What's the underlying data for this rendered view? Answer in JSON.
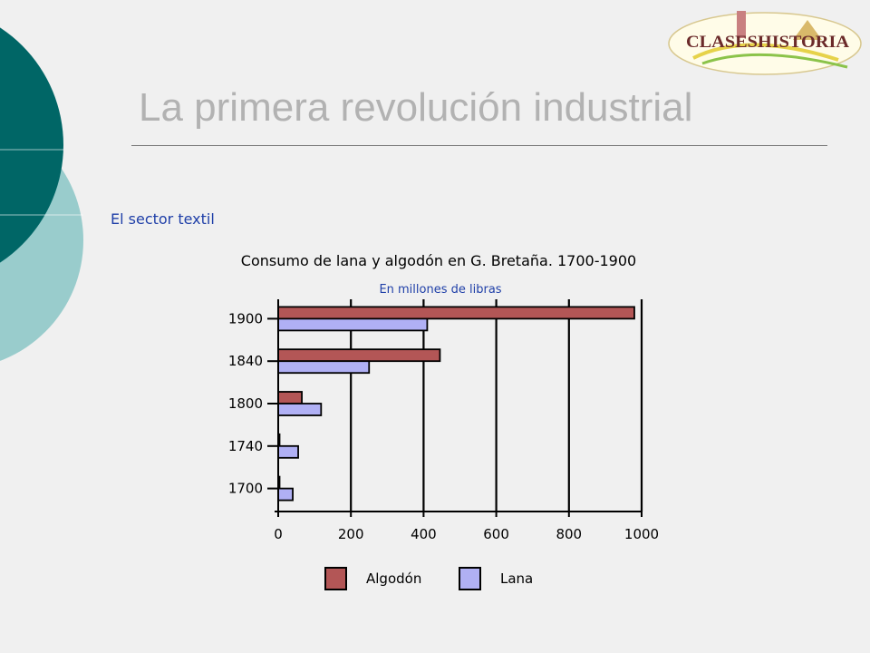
{
  "slide": {
    "title": "La primera revolución industrial",
    "section": "El sector textil"
  },
  "logo": {
    "text": "CLASESHISTORIA",
    "icon": "claseshistoria-logo"
  },
  "colors": {
    "background": "#f0f0f0",
    "teal_dark": "#006666",
    "teal_light": "#99cccc",
    "title_gray": "#b2b2b2",
    "algodon": "#b35656",
    "lana": "#b0b0f4"
  },
  "chart_data": {
    "type": "bar",
    "orientation": "horizontal",
    "title": "Consumo de lana y algodón en G. Bretaña. 1700-1900",
    "subtitle": "En millones de libras",
    "categories": [
      "1900",
      "1840",
      "1800",
      "1740",
      "1700"
    ],
    "series": [
      {
        "name": "Algodón",
        "color": "#b35656",
        "values": [
          980,
          445,
          65,
          3,
          2
        ]
      },
      {
        "name": "Lana",
        "color": "#b0b0f4",
        "values": [
          410,
          250,
          118,
          55,
          40
        ]
      }
    ],
    "xlim": [
      0,
      1000
    ],
    "xticks": [
      "0",
      "200",
      "400",
      "600",
      "800",
      "1000"
    ],
    "grid": "vertical",
    "legend": "bottom"
  }
}
